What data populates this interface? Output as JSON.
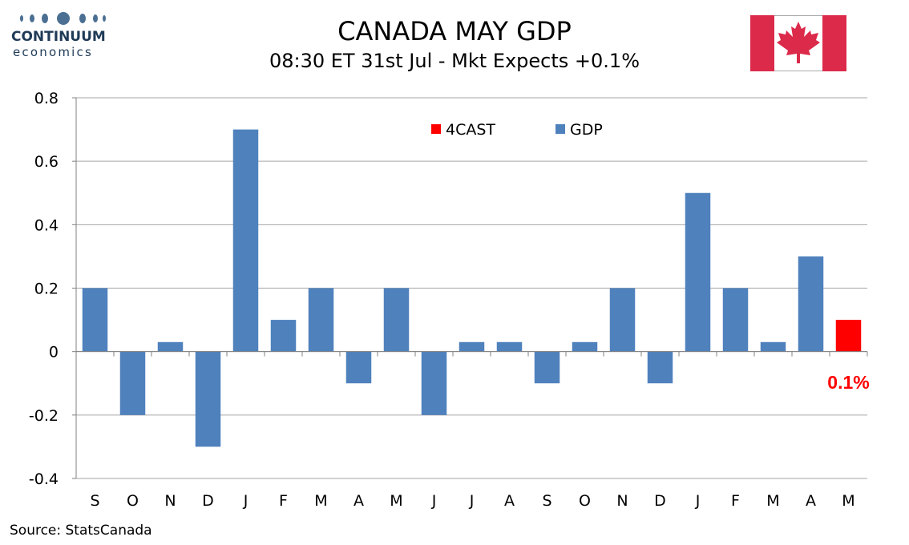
{
  "logo": {
    "line1": "CONTINUUM",
    "line2": "economics"
  },
  "header": {
    "title": "CANADA MAY GDP",
    "subtitle": "08:30 ET 31st Jul - Mkt Expects +0.1%"
  },
  "flag": {
    "name": "canada-flag-icon",
    "red": "#d52b1e",
    "white": "#ffffff"
  },
  "source": "Source: StatsCanada",
  "chart_data": {
    "type": "bar",
    "categories": [
      "S",
      "O",
      "N",
      "D",
      "J",
      "F",
      "M",
      "A",
      "M",
      "J",
      "J",
      "A",
      "S",
      "O",
      "N",
      "D",
      "J",
      "F",
      "M",
      "A",
      "M"
    ],
    "series": [
      {
        "name": "GDP",
        "color": "#4f81bd",
        "values": [
          0.2,
          -0.2,
          0.03,
          -0.3,
          0.7,
          0.1,
          0.2,
          -0.1,
          0.2,
          -0.2,
          0.03,
          0.03,
          -0.1,
          0.03,
          0.2,
          -0.1,
          0.5,
          0.2,
          0.03,
          0.3,
          null
        ]
      },
      {
        "name": "4CAST",
        "color": "#ff0000",
        "values": [
          null,
          null,
          null,
          null,
          null,
          null,
          null,
          null,
          null,
          null,
          null,
          null,
          null,
          null,
          null,
          null,
          null,
          null,
          null,
          null,
          0.1
        ]
      }
    ],
    "legend_order": [
      "4CAST",
      "GDP"
    ],
    "legend_placement": "top-right",
    "annotation": {
      "text": "0.1%",
      "category_index": 20,
      "color": "#ff0000"
    },
    "ylim": [
      -0.4,
      0.8
    ],
    "yticks": [
      -0.4,
      -0.2,
      0,
      0.2,
      0.4,
      0.6,
      0.8
    ],
    "ytick_labels": [
      "-0.4",
      "-0.2",
      "0",
      "0.2",
      "0.4",
      "0.6",
      "0.8"
    ],
    "grid": true,
    "title": "CANADA MAY GDP",
    "xlabel": "",
    "ylabel": ""
  }
}
